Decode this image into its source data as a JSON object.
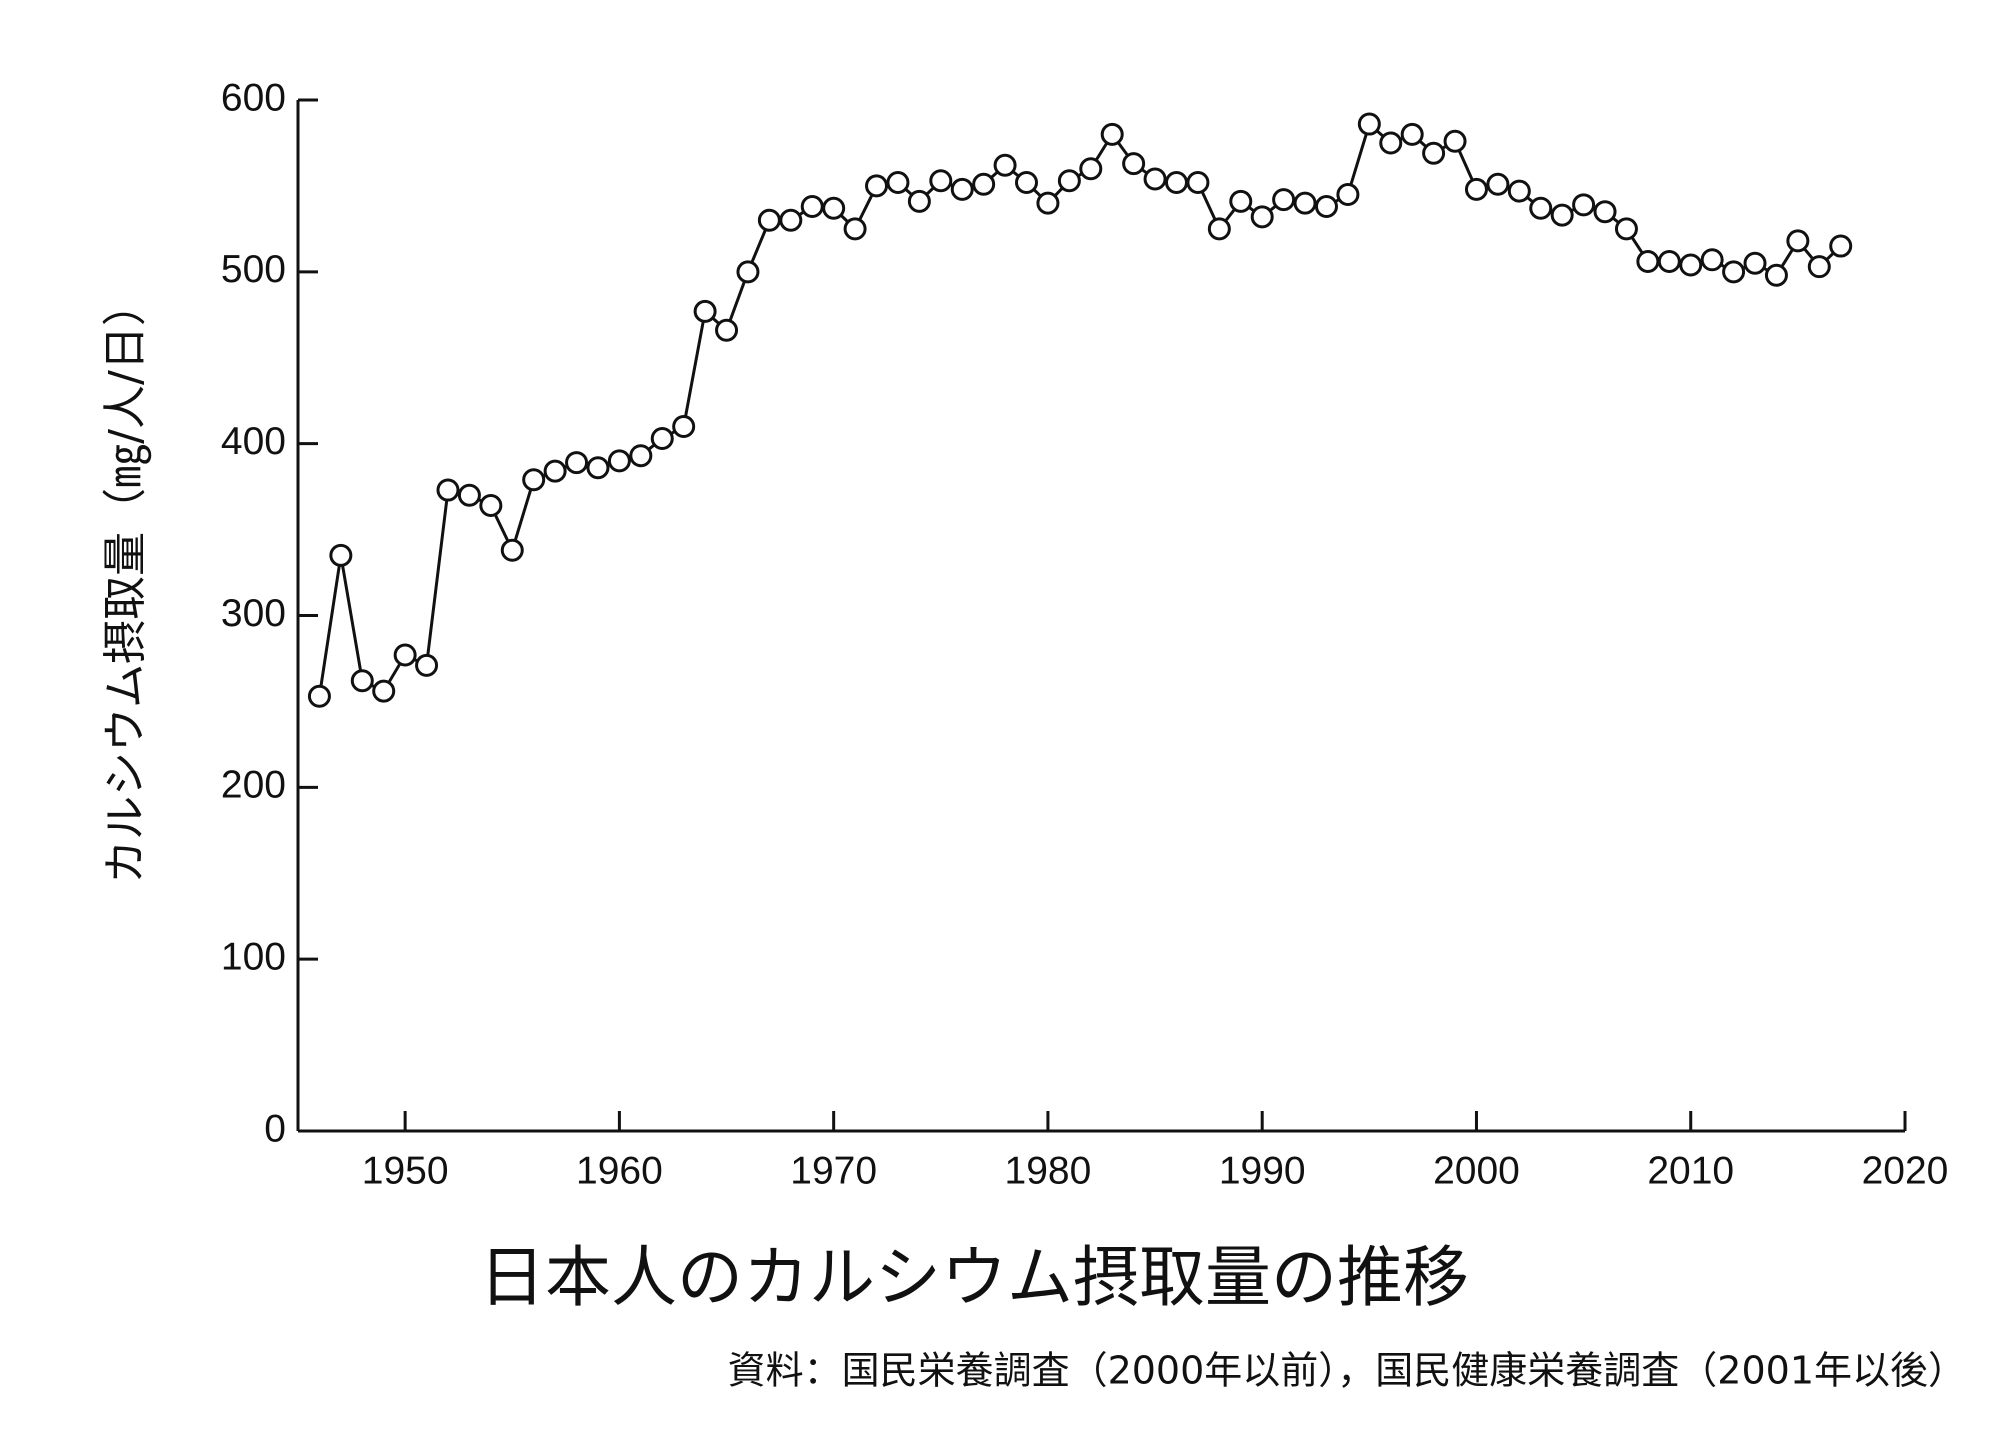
{
  "chart_data": {
    "type": "line",
    "title": "日本人のカルシウム摂取量の推移",
    "y_label": "カルシウム摂取量（㎎/人/日）",
    "source": "資料：国民栄養調査（2000年以前），国民健康栄養調査（2001年以後）",
    "x": [
      1946,
      1947,
      1948,
      1949,
      1950,
      1951,
      1952,
      1953,
      1954,
      1955,
      1956,
      1957,
      1958,
      1959,
      1960,
      1961,
      1962,
      1963,
      1964,
      1965,
      1966,
      1967,
      1968,
      1969,
      1970,
      1971,
      1972,
      1973,
      1974,
      1975,
      1976,
      1977,
      1978,
      1979,
      1980,
      1981,
      1982,
      1983,
      1984,
      1985,
      1986,
      1987,
      1988,
      1989,
      1990,
      1991,
      1992,
      1993,
      1994,
      1995,
      1996,
      1997,
      1998,
      1999,
      2000,
      2001,
      2002,
      2003,
      2004,
      2005,
      2006,
      2007,
      2008,
      2009,
      2010,
      2011,
      2012,
      2013,
      2014,
      2015,
      2016,
      2017
    ],
    "series": [
      {
        "name": "カルシウム摂取量",
        "color": "#111111",
        "values": [
          253,
          335,
          262,
          256,
          277,
          271,
          373,
          370,
          364,
          338,
          379,
          384,
          389,
          386,
          390,
          393,
          403,
          410,
          477,
          466,
          500,
          530,
          530,
          538,
          537,
          525,
          550,
          552,
          541,
          553,
          548,
          551,
          562,
          552,
          540,
          553,
          560,
          580,
          563,
          554,
          552,
          552,
          525,
          541,
          532,
          542,
          540,
          538,
          545,
          586,
          575,
          580,
          569,
          576,
          548,
          551,
          547,
          537,
          533,
          539,
          535,
          525,
          506,
          506,
          504,
          507,
          500,
          505,
          498,
          518,
          503,
          515
        ]
      }
    ],
    "xlim": [
      1945,
      2020
    ],
    "xticks": [
      1950,
      1960,
      1970,
      1980,
      1990,
      2000,
      2010,
      2020
    ],
    "ylim": [
      0,
      600
    ],
    "yticks": [
      0,
      100,
      200,
      300,
      400,
      500,
      600
    ]
  }
}
